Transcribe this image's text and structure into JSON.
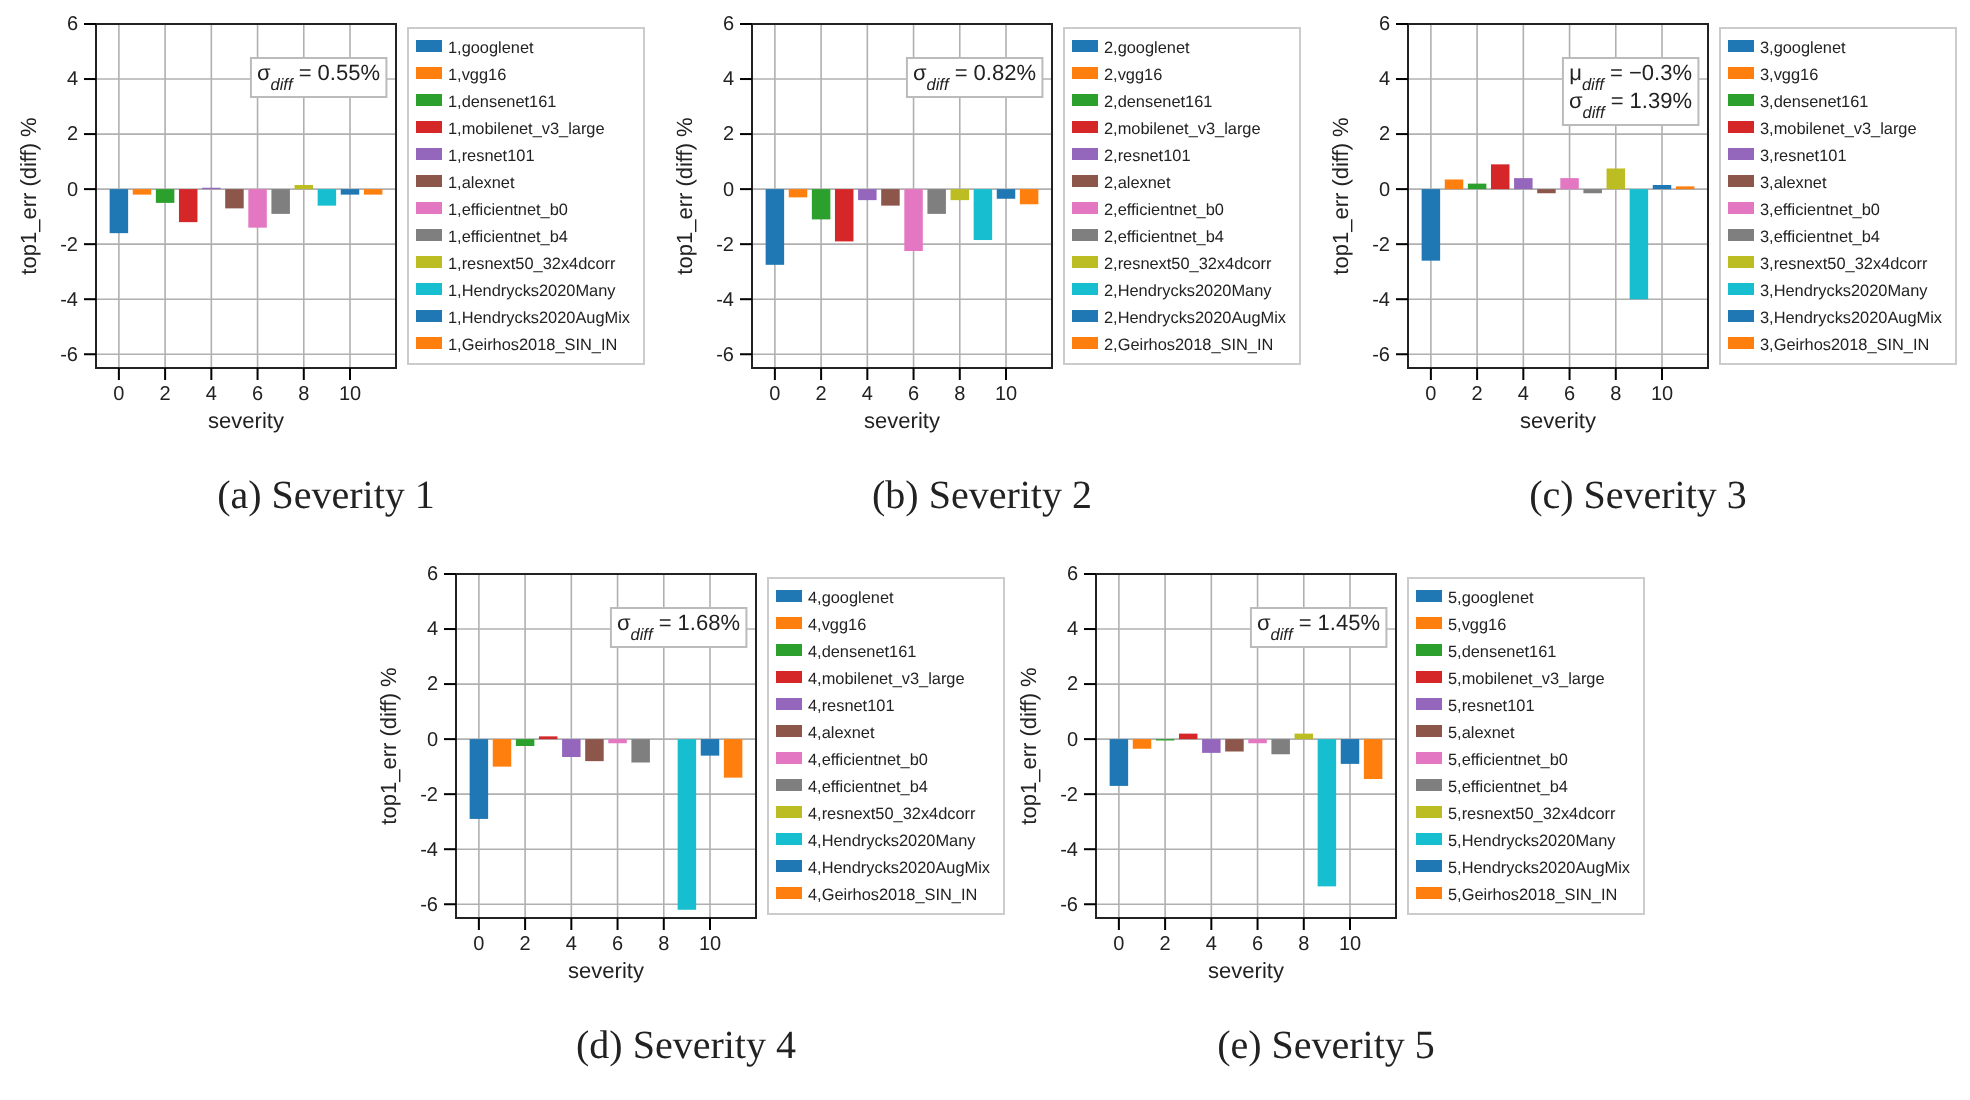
{
  "chart_data": [
    {
      "type": "bar",
      "title": "(a) Severity 1",
      "xlabel": "severity",
      "ylabel": "top1_err (diff) %",
      "xlim": [
        -0.99,
        11.99
      ],
      "xticks": [
        0,
        2,
        4,
        6,
        8,
        10
      ],
      "ylim": [
        -6.5,
        6
      ],
      "yticks": [
        -6,
        -4,
        -2,
        0,
        2,
        4,
        6
      ],
      "grid": true,
      "legend": "right",
      "annotations": [
        "σ$_{diff}$ = 0.55%"
      ],
      "series": [
        {
          "name": "1,googlenet",
          "color": "#1f77b4",
          "x": [
            0
          ],
          "values": [
            -1.6
          ]
        },
        {
          "name": "1,vgg16",
          "color": "#ff7f0e",
          "x": [
            1
          ],
          "values": [
            -0.2
          ]
        },
        {
          "name": "1,densenet161",
          "color": "#2ca02c",
          "x": [
            2
          ],
          "values": [
            -0.5
          ]
        },
        {
          "name": "1,mobilenet_v3_large",
          "color": "#d62728",
          "x": [
            3
          ],
          "values": [
            -1.2
          ]
        },
        {
          "name": "1,resnet101",
          "color": "#9467bd",
          "x": [
            4
          ],
          "values": [
            0.05
          ]
        },
        {
          "name": "1,alexnet",
          "color": "#8c564b",
          "x": [
            5
          ],
          "values": [
            -0.7
          ]
        },
        {
          "name": "1,efficientnet_b0",
          "color": "#e377c2",
          "x": [
            6
          ],
          "values": [
            -1.4
          ]
        },
        {
          "name": "1,efficientnet_b4",
          "color": "#7f7f7f",
          "x": [
            7
          ],
          "values": [
            -0.9
          ]
        },
        {
          "name": "1,resnext50_32x4dcorr",
          "color": "#bcbd22",
          "x": [
            8
          ],
          "values": [
            0.15
          ]
        },
        {
          "name": "1,Hendrycks2020Many",
          "color": "#17becf",
          "x": [
            9
          ],
          "values": [
            -0.6
          ]
        },
        {
          "name": "1,Hendrycks2020AugMix",
          "color": "#1f77b4",
          "x": [
            10
          ],
          "values": [
            -0.2
          ]
        },
        {
          "name": "1,Geirhos2018_SIN_IN",
          "color": "#ff7f0e",
          "x": [
            11
          ],
          "values": [
            -0.2
          ]
        }
      ]
    },
    {
      "type": "bar",
      "title": "(b) Severity 2",
      "xlabel": "severity",
      "ylabel": "top1_err (diff) %",
      "xlim": [
        -0.99,
        11.99
      ],
      "xticks": [
        0,
        2,
        4,
        6,
        8,
        10
      ],
      "ylim": [
        -6.5,
        6
      ],
      "yticks": [
        -6,
        -4,
        -2,
        0,
        2,
        4,
        6
      ],
      "grid": true,
      "legend": "right",
      "annotations": [
        "σ$_{diff}$ = 0.82%"
      ],
      "series": [
        {
          "name": "2,googlenet",
          "color": "#1f77b4",
          "x": [
            0
          ],
          "values": [
            -2.75
          ]
        },
        {
          "name": "2,vgg16",
          "color": "#ff7f0e",
          "x": [
            1
          ],
          "values": [
            -0.3
          ]
        },
        {
          "name": "2,densenet161",
          "color": "#2ca02c",
          "x": [
            2
          ],
          "values": [
            -1.1
          ]
        },
        {
          "name": "2,mobilenet_v3_large",
          "color": "#d62728",
          "x": [
            3
          ],
          "values": [
            -1.9
          ]
        },
        {
          "name": "2,resnet101",
          "color": "#9467bd",
          "x": [
            4
          ],
          "values": [
            -0.4
          ]
        },
        {
          "name": "2,alexnet",
          "color": "#8c564b",
          "x": [
            5
          ],
          "values": [
            -0.6
          ]
        },
        {
          "name": "2,efficientnet_b0",
          "color": "#e377c2",
          "x": [
            6
          ],
          "values": [
            -2.25
          ]
        },
        {
          "name": "2,efficientnet_b4",
          "color": "#7f7f7f",
          "x": [
            7
          ],
          "values": [
            -0.9
          ]
        },
        {
          "name": "2,resnext50_32x4dcorr",
          "color": "#bcbd22",
          "x": [
            8
          ],
          "values": [
            -0.4
          ]
        },
        {
          "name": "2,Hendrycks2020Many",
          "color": "#17becf",
          "x": [
            9
          ],
          "values": [
            -1.85
          ]
        },
        {
          "name": "2,Hendrycks2020AugMix",
          "color": "#1f77b4",
          "x": [
            10
          ],
          "values": [
            -0.35
          ]
        },
        {
          "name": "2,Geirhos2018_SIN_IN",
          "color": "#ff7f0e",
          "x": [
            11
          ],
          "values": [
            -0.55
          ]
        }
      ]
    },
    {
      "type": "bar",
      "title": "(c) Severity 3",
      "xlabel": "severity",
      "ylabel": "top1_err (diff) %",
      "xlim": [
        -0.99,
        11.99
      ],
      "xticks": [
        0,
        2,
        4,
        6,
        8,
        10
      ],
      "ylim": [
        -6.5,
        6
      ],
      "yticks": [
        -6,
        -4,
        -2,
        0,
        2,
        4,
        6
      ],
      "grid": true,
      "legend": "right",
      "annotations": [
        "μ$_{diff}$ = −0.3%",
        "σ$_{diff}$ = 1.39%"
      ],
      "series": [
        {
          "name": "3,googlenet",
          "color": "#1f77b4",
          "x": [
            0
          ],
          "values": [
            -2.6
          ]
        },
        {
          "name": "3,vgg16",
          "color": "#ff7f0e",
          "x": [
            1
          ],
          "values": [
            0.35
          ]
        },
        {
          "name": "3,densenet161",
          "color": "#2ca02c",
          "x": [
            2
          ],
          "values": [
            0.2
          ]
        },
        {
          "name": "3,mobilenet_v3_large",
          "color": "#d62728",
          "x": [
            3
          ],
          "values": [
            0.9
          ]
        },
        {
          "name": "3,resnet101",
          "color": "#9467bd",
          "x": [
            4
          ],
          "values": [
            0.4
          ]
        },
        {
          "name": "3,alexnet",
          "color": "#8c564b",
          "x": [
            5
          ],
          "values": [
            -0.15
          ]
        },
        {
          "name": "3,efficientnet_b0",
          "color": "#e377c2",
          "x": [
            6
          ],
          "values": [
            0.4
          ]
        },
        {
          "name": "3,efficientnet_b4",
          "color": "#7f7f7f",
          "x": [
            7
          ],
          "values": [
            -0.15
          ]
        },
        {
          "name": "3,resnext50_32x4dcorr",
          "color": "#bcbd22",
          "x": [
            8
          ],
          "values": [
            0.75
          ]
        },
        {
          "name": "3,Hendrycks2020Many",
          "color": "#17becf",
          "x": [
            9
          ],
          "values": [
            -4.0
          ]
        },
        {
          "name": "3,Hendrycks2020AugMix",
          "color": "#1f77b4",
          "x": [
            10
          ],
          "values": [
            0.15
          ]
        },
        {
          "name": "3,Geirhos2018_SIN_IN",
          "color": "#ff7f0e",
          "x": [
            11
          ],
          "values": [
            0.1
          ]
        }
      ]
    },
    {
      "type": "bar",
      "title": "(d) Severity 4",
      "xlabel": "severity",
      "ylabel": "top1_err (diff) %",
      "xlim": [
        -0.99,
        11.99
      ],
      "xticks": [
        0,
        2,
        4,
        6,
        8,
        10
      ],
      "ylim": [
        -6.5,
        6
      ],
      "yticks": [
        -6,
        -4,
        -2,
        0,
        2,
        4,
        6
      ],
      "grid": true,
      "legend": "right",
      "annotations": [
        "σ$_{diff}$ = 1.68%"
      ],
      "series": [
        {
          "name": "4,googlenet",
          "color": "#1f77b4",
          "x": [
            0
          ],
          "values": [
            -2.9
          ]
        },
        {
          "name": "4,vgg16",
          "color": "#ff7f0e",
          "x": [
            1
          ],
          "values": [
            -1.0
          ]
        },
        {
          "name": "4,densenet161",
          "color": "#2ca02c",
          "x": [
            2
          ],
          "values": [
            -0.25
          ]
        },
        {
          "name": "4,mobilenet_v3_large",
          "color": "#d62728",
          "x": [
            3
          ],
          "values": [
            0.1
          ]
        },
        {
          "name": "4,resnet101",
          "color": "#9467bd",
          "x": [
            4
          ],
          "values": [
            -0.65
          ]
        },
        {
          "name": "4,alexnet",
          "color": "#8c564b",
          "x": [
            5
          ],
          "values": [
            -0.8
          ]
        },
        {
          "name": "4,efficientnet_b0",
          "color": "#e377c2",
          "x": [
            6
          ],
          "values": [
            -0.15
          ]
        },
        {
          "name": "4,efficientnet_b4",
          "color": "#7f7f7f",
          "x": [
            7
          ],
          "values": [
            -0.85
          ]
        },
        {
          "name": "4,resnext50_32x4dcorr",
          "color": "#bcbd22",
          "x": [
            8
          ],
          "values": [
            0
          ]
        },
        {
          "name": "4,Hendrycks2020Many",
          "color": "#17becf",
          "x": [
            9
          ],
          "values": [
            -6.2
          ]
        },
        {
          "name": "4,Hendrycks2020AugMix",
          "color": "#1f77b4",
          "x": [
            10
          ],
          "values": [
            -0.6
          ]
        },
        {
          "name": "4,Geirhos2018_SIN_IN",
          "color": "#ff7f0e",
          "x": [
            11
          ],
          "values": [
            -1.4
          ]
        }
      ]
    },
    {
      "type": "bar",
      "title": "(e) Severity 5",
      "xlabel": "severity",
      "ylabel": "top1_err (diff) %",
      "xlim": [
        -0.99,
        11.99
      ],
      "xticks": [
        0,
        2,
        4,
        6,
        8,
        10
      ],
      "ylim": [
        -6.5,
        6
      ],
      "yticks": [
        -6,
        -4,
        -2,
        0,
        2,
        4,
        6
      ],
      "grid": true,
      "legend": "right",
      "annotations": [
        "σ$_{diff}$ = 1.45%"
      ],
      "series": [
        {
          "name": "5,googlenet",
          "color": "#1f77b4",
          "x": [
            0
          ],
          "values": [
            -1.7
          ]
        },
        {
          "name": "5,vgg16",
          "color": "#ff7f0e",
          "x": [
            1
          ],
          "values": [
            -0.35
          ]
        },
        {
          "name": "5,densenet161",
          "color": "#2ca02c",
          "x": [
            2
          ],
          "values": [
            -0.05
          ]
        },
        {
          "name": "5,mobilenet_v3_large",
          "color": "#d62728",
          "x": [
            3
          ],
          "values": [
            0.2
          ]
        },
        {
          "name": "5,resnet101",
          "color": "#9467bd",
          "x": [
            4
          ],
          "values": [
            -0.5
          ]
        },
        {
          "name": "5,alexnet",
          "color": "#8c564b",
          "x": [
            5
          ],
          "values": [
            -0.45
          ]
        },
        {
          "name": "5,efficientnet_b0",
          "color": "#e377c2",
          "x": [
            6
          ],
          "values": [
            -0.15
          ]
        },
        {
          "name": "5,efficientnet_b4",
          "color": "#7f7f7f",
          "x": [
            7
          ],
          "values": [
            -0.55
          ]
        },
        {
          "name": "5,resnext50_32x4dcorr",
          "color": "#bcbd22",
          "x": [
            8
          ],
          "values": [
            0.2
          ]
        },
        {
          "name": "5,Hendrycks2020Many",
          "color": "#17becf",
          "x": [
            9
          ],
          "values": [
            -5.35
          ]
        },
        {
          "name": "5,Hendrycks2020AugMix",
          "color": "#1f77b4",
          "x": [
            10
          ],
          "values": [
            -0.9
          ]
        },
        {
          "name": "5,Geirhos2018_SIN_IN",
          "color": "#ff7f0e",
          "x": [
            11
          ],
          "values": [
            -1.45
          ]
        }
      ]
    }
  ]
}
